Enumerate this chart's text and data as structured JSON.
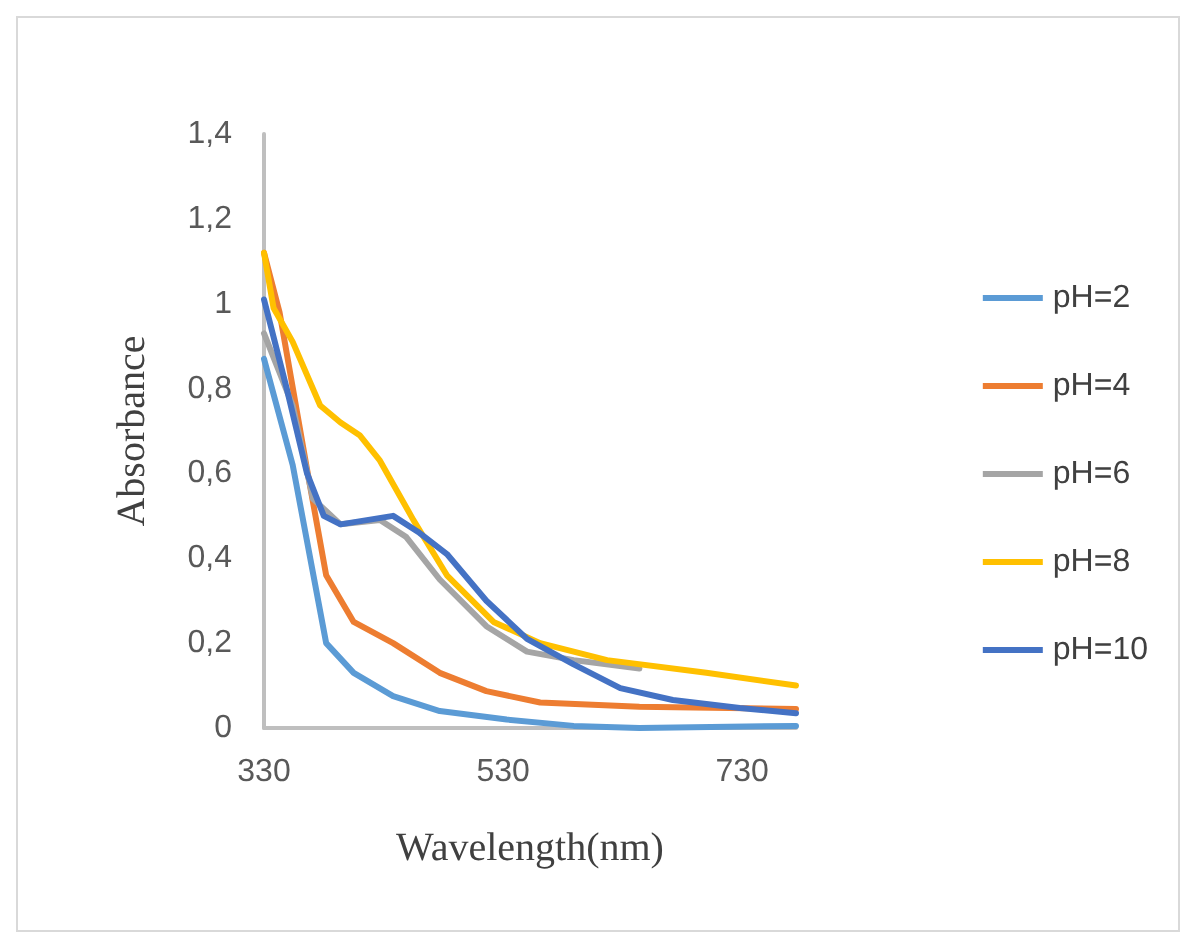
{
  "chart_data": {
    "type": "line",
    "xlabel": "Wavelength(nm)",
    "ylabel": "Absorbance",
    "xlim": [
      330,
      775
    ],
    "xticks": [
      330,
      530,
      730
    ],
    "ylim": [
      0,
      1.4
    ],
    "yticks": [
      {
        "value": 0,
        "label": "0"
      },
      {
        "value": 0.2,
        "label": "0,2"
      },
      {
        "value": 0.4,
        "label": "0,4"
      },
      {
        "value": 0.6,
        "label": "0,6"
      },
      {
        "value": 0.8,
        "label": "0,8"
      },
      {
        "value": 1,
        "label": "1"
      },
      {
        "value": 1.2,
        "label": "1,2"
      },
      {
        "value": 1.4,
        "label": "1,4"
      }
    ],
    "grid": false,
    "legend": "right",
    "marker": "none",
    "line_style": "solid",
    "series": [
      {
        "name": "pH=2",
        "color": "#5b9bd5",
        "x": [
          330,
          354,
          382,
          405,
          438,
          477,
          533,
          589,
          644,
          775
        ],
        "values": [
          0.87,
          0.62,
          0.2,
          0.13,
          0.075,
          0.04,
          0.02,
          0.005,
          0,
          0.005
        ]
      },
      {
        "name": "pH=4",
        "color": "#ed7d31",
        "x": [
          330,
          343,
          366,
          382,
          405,
          438,
          477,
          516,
          561,
          644,
          775
        ],
        "values": [
          1.12,
          0.98,
          0.61,
          0.36,
          0.25,
          0.2,
          0.13,
          0.087,
          0.06,
          0.05,
          0.045
        ]
      },
      {
        "name": "pH=6",
        "color": "#a5a5a5",
        "x": [
          330,
          354,
          371,
          394,
          427,
          449,
          477,
          516,
          550,
          589,
          644
        ],
        "values": [
          0.93,
          0.76,
          0.54,
          0.48,
          0.49,
          0.45,
          0.35,
          0.24,
          0.18,
          0.16,
          0.14
        ]
      },
      {
        "name": "pH=8",
        "color": "#ffc000",
        "x": [
          330,
          338,
          354,
          377,
          394,
          410,
          427,
          455,
          483,
          522,
          561,
          617,
          700,
          775
        ],
        "values": [
          1.12,
          0.99,
          0.91,
          0.76,
          0.72,
          0.69,
          0.63,
          0.49,
          0.36,
          0.25,
          0.2,
          0.16,
          0.13,
          0.1
        ]
      },
      {
        "name": "pH=10",
        "color": "#4472c4",
        "x": [
          330,
          349,
          366,
          380,
          394,
          416,
          438,
          460,
          483,
          516,
          550,
          589,
          628,
          672,
          728,
          775
        ],
        "values": [
          1.01,
          0.8,
          0.6,
          0.5,
          0.48,
          0.49,
          0.5,
          0.46,
          0.41,
          0.3,
          0.21,
          0.15,
          0.094,
          0.066,
          0.047,
          0.035
        ]
      }
    ]
  }
}
